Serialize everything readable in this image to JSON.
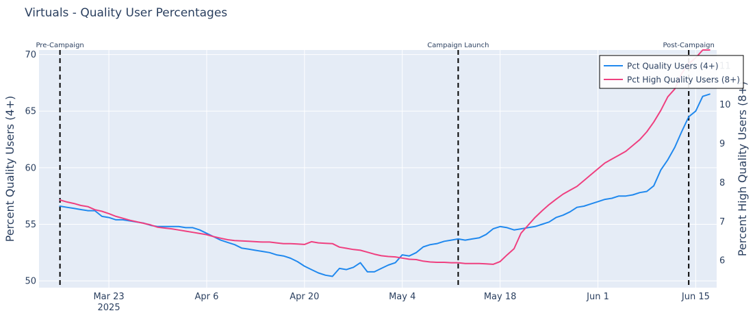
{
  "chart_data": {
    "type": "line",
    "title": "Virtuals - Quality User Percentages",
    "ylabel": "Percent Quality Users (4+)",
    "y2label": "Percent High Quality Users (8+)",
    "xlim": [
      "2025-03-13",
      "2025-06-18"
    ],
    "ylim": [
      49.4,
      70.4
    ],
    "y2lim": [
      5.3,
      11.4
    ],
    "x_ticks": [
      {
        "date": "2025-03-23",
        "label": "Mar 23",
        "sublabel": "2025"
      },
      {
        "date": "2025-04-06",
        "label": "Apr 6",
        "sublabel": ""
      },
      {
        "date": "2025-04-20",
        "label": "Apr 20",
        "sublabel": ""
      },
      {
        "date": "2025-05-04",
        "label": "May 4",
        "sublabel": ""
      },
      {
        "date": "2025-05-18",
        "label": "May 18",
        "sublabel": ""
      },
      {
        "date": "2025-06-01",
        "label": "Jun 1",
        "sublabel": ""
      },
      {
        "date": "2025-06-15",
        "label": "Jun 15",
        "sublabel": ""
      }
    ],
    "y_ticks": [
      50,
      55,
      60,
      65,
      70
    ],
    "y2_ticks": [
      6,
      7,
      8,
      9,
      10,
      11
    ],
    "y2_tick_labels": [
      "6",
      "7",
      "8",
      "9",
      "10",
      "11"
    ],
    "grid": true,
    "legend_position": "top-right",
    "vlines": [
      {
        "date": "2025-03-16",
        "label": "Pre-Campaign"
      },
      {
        "date": "2025-05-12",
        "label": "Campaign Launch"
      },
      {
        "date": "2025-06-14",
        "label": "Post-Campaign"
      }
    ],
    "series": [
      {
        "name": "Pct Quality Users (4+)",
        "axis": "y",
        "color": "#1f88ee",
        "x": [
          "2025-03-16",
          "2025-03-17",
          "2025-03-18",
          "2025-03-19",
          "2025-03-20",
          "2025-03-21",
          "2025-03-22",
          "2025-03-23",
          "2025-03-24",
          "2025-03-25",
          "2025-03-26",
          "2025-03-27",
          "2025-03-28",
          "2025-03-29",
          "2025-03-30",
          "2025-03-31",
          "2025-04-01",
          "2025-04-02",
          "2025-04-03",
          "2025-04-04",
          "2025-04-05",
          "2025-04-06",
          "2025-04-07",
          "2025-04-08",
          "2025-04-09",
          "2025-04-10",
          "2025-04-11",
          "2025-04-12",
          "2025-04-13",
          "2025-04-14",
          "2025-04-15",
          "2025-04-16",
          "2025-04-17",
          "2025-04-18",
          "2025-04-19",
          "2025-04-20",
          "2025-04-21",
          "2025-04-22",
          "2025-04-23",
          "2025-04-24",
          "2025-04-25",
          "2025-04-26",
          "2025-04-27",
          "2025-04-28",
          "2025-04-29",
          "2025-04-30",
          "2025-05-01",
          "2025-05-02",
          "2025-05-03",
          "2025-05-04",
          "2025-05-05",
          "2025-05-06",
          "2025-05-07",
          "2025-05-08",
          "2025-05-09",
          "2025-05-10",
          "2025-05-11",
          "2025-05-12",
          "2025-05-13",
          "2025-05-14",
          "2025-05-15",
          "2025-05-16",
          "2025-05-17",
          "2025-05-18",
          "2025-05-19",
          "2025-05-20",
          "2025-05-21",
          "2025-05-22",
          "2025-05-23",
          "2025-05-24",
          "2025-05-25",
          "2025-05-26",
          "2025-05-27",
          "2025-05-28",
          "2025-05-29",
          "2025-05-30",
          "2025-05-31",
          "2025-06-01",
          "2025-06-02",
          "2025-06-03",
          "2025-06-04",
          "2025-06-05",
          "2025-06-06",
          "2025-06-07",
          "2025-06-08",
          "2025-06-09",
          "2025-06-10",
          "2025-06-11",
          "2025-06-12",
          "2025-06-13",
          "2025-06-14",
          "2025-06-15",
          "2025-06-16",
          "2025-06-17"
        ],
        "values": [
          56.6,
          56.5,
          56.4,
          56.3,
          56.2,
          56.2,
          55.7,
          55.6,
          55.4,
          55.4,
          55.3,
          55.2,
          55.1,
          54.9,
          54.8,
          54.8,
          54.8,
          54.8,
          54.7,
          54.7,
          54.5,
          54.2,
          53.9,
          53.6,
          53.4,
          53.2,
          52.9,
          52.8,
          52.7,
          52.6,
          52.5,
          52.3,
          52.2,
          52.0,
          51.7,
          51.3,
          51.0,
          50.7,
          50.5,
          50.4,
          51.1,
          51.0,
          51.2,
          51.6,
          50.8,
          50.8,
          51.1,
          51.4,
          51.6,
          52.3,
          52.2,
          52.5,
          53.0,
          53.2,
          53.3,
          53.5,
          53.6,
          53.7,
          53.6,
          53.7,
          53.8,
          54.1,
          54.6,
          54.8,
          54.7,
          54.5,
          54.6,
          54.7,
          54.8,
          55.0,
          55.2,
          55.6,
          55.8,
          56.1,
          56.5,
          56.6,
          56.8,
          57.0,
          57.2,
          57.3,
          57.5,
          57.5,
          57.6,
          57.8,
          57.9,
          58.4,
          59.8,
          60.7,
          61.8,
          63.2,
          64.5,
          65.0,
          66.3,
          66.5
        ]
      },
      {
        "name": "Pct High Quality Users (8+)",
        "axis": "y2",
        "color": "#ef3f7f",
        "x": [
          "2025-03-16",
          "2025-03-17",
          "2025-03-18",
          "2025-03-19",
          "2025-03-20",
          "2025-03-21",
          "2025-03-22",
          "2025-03-23",
          "2025-03-24",
          "2025-03-25",
          "2025-03-26",
          "2025-03-27",
          "2025-03-28",
          "2025-03-29",
          "2025-03-30",
          "2025-03-31",
          "2025-04-01",
          "2025-04-02",
          "2025-04-03",
          "2025-04-04",
          "2025-04-05",
          "2025-04-06",
          "2025-04-07",
          "2025-04-08",
          "2025-04-09",
          "2025-04-10",
          "2025-04-11",
          "2025-04-12",
          "2025-04-13",
          "2025-04-14",
          "2025-04-15",
          "2025-04-16",
          "2025-04-17",
          "2025-04-18",
          "2025-04-19",
          "2025-04-20",
          "2025-04-21",
          "2025-04-22",
          "2025-04-23",
          "2025-04-24",
          "2025-04-25",
          "2025-04-26",
          "2025-04-27",
          "2025-04-28",
          "2025-04-29",
          "2025-04-30",
          "2025-05-01",
          "2025-05-02",
          "2025-05-03",
          "2025-05-04",
          "2025-05-05",
          "2025-05-06",
          "2025-05-07",
          "2025-05-08",
          "2025-05-09",
          "2025-05-10",
          "2025-05-11",
          "2025-05-12",
          "2025-05-13",
          "2025-05-14",
          "2025-05-15",
          "2025-05-16",
          "2025-05-17",
          "2025-05-18",
          "2025-05-19",
          "2025-05-20",
          "2025-05-21",
          "2025-05-22",
          "2025-05-23",
          "2025-05-24",
          "2025-05-25",
          "2025-05-26",
          "2025-05-27",
          "2025-05-28",
          "2025-05-29",
          "2025-05-30",
          "2025-05-31",
          "2025-06-01",
          "2025-06-02",
          "2025-06-03",
          "2025-06-04",
          "2025-06-05",
          "2025-06-06",
          "2025-06-07",
          "2025-06-08",
          "2025-06-09",
          "2025-06-10",
          "2025-06-11",
          "2025-06-12",
          "2025-06-13",
          "2025-06-14",
          "2025-06-15",
          "2025-06-16",
          "2025-06-17"
        ],
        "values": [
          7.55,
          7.5,
          7.46,
          7.41,
          7.38,
          7.3,
          7.26,
          7.2,
          7.13,
          7.08,
          7.03,
          6.99,
          6.95,
          6.91,
          6.85,
          6.83,
          6.81,
          6.78,
          6.75,
          6.72,
          6.69,
          6.66,
          6.61,
          6.57,
          6.53,
          6.51,
          6.5,
          6.49,
          6.48,
          6.47,
          6.47,
          6.45,
          6.43,
          6.43,
          6.42,
          6.41,
          6.48,
          6.45,
          6.44,
          6.43,
          6.34,
          6.31,
          6.28,
          6.26,
          6.21,
          6.16,
          6.12,
          6.1,
          6.09,
          6.06,
          6.03,
          6.02,
          5.98,
          5.96,
          5.95,
          5.95,
          5.94,
          5.94,
          5.92,
          5.92,
          5.92,
          5.91,
          5.9,
          5.97,
          6.14,
          6.3,
          6.7,
          6.9,
          7.1,
          7.27,
          7.43,
          7.57,
          7.7,
          7.8,
          7.9,
          8.05,
          8.2,
          8.35,
          8.5,
          8.6,
          8.7,
          8.8,
          8.95,
          9.1,
          9.3,
          9.55,
          9.85,
          10.2,
          10.4,
          10.8,
          11.05,
          11.2,
          11.4,
          11.4
        ]
      }
    ]
  }
}
